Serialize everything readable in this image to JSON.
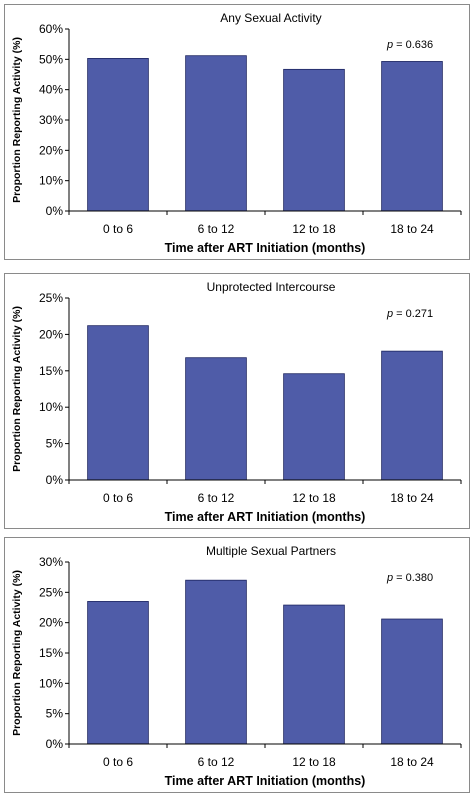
{
  "colors": {
    "bar": "#4f5ca8",
    "bar_stroke": "#1c2460",
    "axis": "#000000",
    "border": "#8a8a8a"
  },
  "chart_data": [
    {
      "type": "bar",
      "title": "Any Sexual Activity",
      "xlabel": "Time after ART Initiation (months)",
      "ylabel": "Proportion Reporting Activity (%)",
      "categories": [
        "0 to 6",
        "6 to 12",
        "12 to 18",
        "18 to 24"
      ],
      "values": [
        50.3,
        51.2,
        46.7,
        49.3
      ],
      "ylim": [
        0,
        60
      ],
      "yticks": [
        "0%",
        "10%",
        "20%",
        "30%",
        "40%",
        "50%",
        "60%"
      ],
      "p_label": "p",
      "p_value": "= 0.636",
      "grid": false
    },
    {
      "type": "bar",
      "title": "Unprotected Intercourse",
      "xlabel": "Time after ART Initiation (months)",
      "ylabel": "Proportion Reporting Activity (%)",
      "categories": [
        "0 to 6",
        "6 to 12",
        "12 to 18",
        "18 to 24"
      ],
      "values": [
        21.2,
        16.8,
        14.6,
        17.7
      ],
      "ylim": [
        0,
        25
      ],
      "yticks": [
        "0%",
        "5%",
        "10%",
        "15%",
        "20%",
        "25%"
      ],
      "p_label": "p",
      "p_value": "= 0.271",
      "grid": false
    },
    {
      "type": "bar",
      "title": "Multiple Sexual Partners",
      "xlabel": "Time after ART Initiation (months)",
      "ylabel": "Proportion Reporting Activity (%)",
      "categories": [
        "0 to 6",
        "6 to 12",
        "12 to 18",
        "18 to 24"
      ],
      "values": [
        23.5,
        27.0,
        22.9,
        20.6
      ],
      "ylim": [
        0,
        30
      ],
      "yticks": [
        "0%",
        "5%",
        "10%",
        "15%",
        "20%",
        "25%",
        "30%"
      ],
      "p_label": "p",
      "p_value": "= 0.380",
      "grid": false
    }
  ]
}
